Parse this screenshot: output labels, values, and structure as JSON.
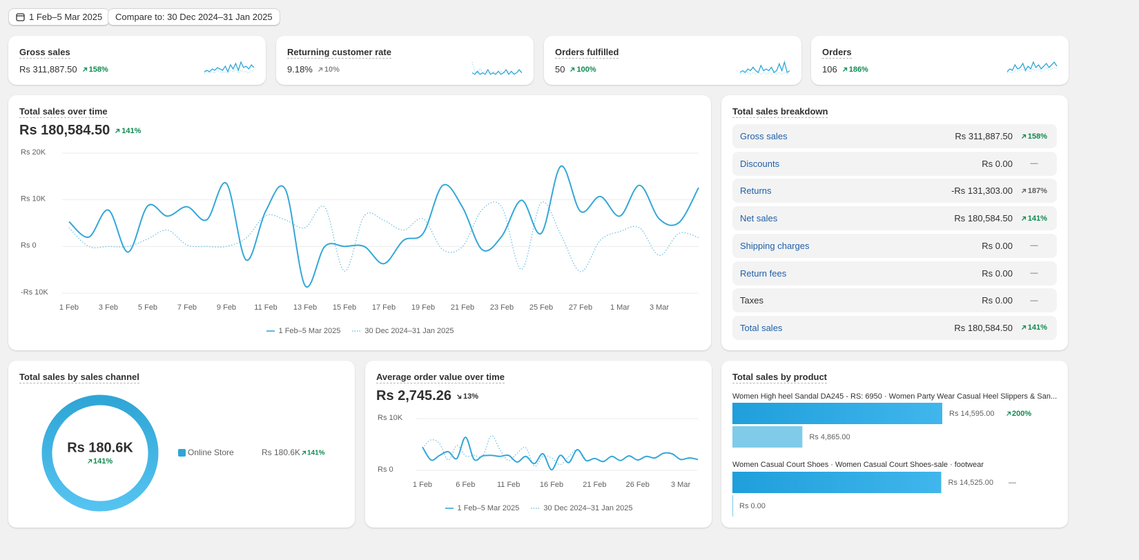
{
  "header": {
    "date_range": "1 Feb–5 Mar 2025",
    "compare": "Compare to: 30 Dec 2024–31 Jan 2025"
  },
  "kpis": [
    {
      "title": "Gross sales",
      "value": "Rs 311,887.50",
      "change": "158%",
      "trend": "up",
      "change_color": "#0c8a4e",
      "sparkline": {
        "color": "#2fa6d6",
        "current": [
          3,
          4,
          3,
          5,
          4,
          6,
          5,
          4,
          7,
          3,
          8,
          5,
          9,
          4,
          10,
          6,
          7,
          5,
          8,
          6
        ],
        "previous": [
          2,
          3,
          2,
          3,
          2,
          4,
          3,
          2,
          3,
          2,
          4,
          3,
          5,
          2,
          4,
          3,
          3,
          2,
          4,
          3
        ]
      }
    },
    {
      "title": "Returning customer rate",
      "value": "9.18%",
      "change": "10%",
      "trend": "up",
      "change_color": "#8a8a8a",
      "sparkline": {
        "color": "#2fa6d6",
        "current": [
          2,
          1,
          3,
          1,
          2,
          1,
          4,
          1,
          2,
          1,
          3,
          1,
          2,
          4,
          1,
          3,
          1,
          2,
          4,
          2
        ],
        "previous": [
          9,
          3,
          2,
          5,
          2,
          3,
          2,
          2,
          3,
          2,
          2,
          3,
          2,
          2,
          3,
          2,
          2,
          2,
          3,
          2
        ]
      }
    },
    {
      "title": "Orders fulfilled",
      "value": "50",
      "change": "100%",
      "trend": "up",
      "change_color": "#0c8a4e",
      "sparkline": {
        "color": "#2fa6d6",
        "current": [
          2,
          3,
          2,
          4,
          3,
          5,
          3,
          2,
          6,
          3,
          4,
          3,
          5,
          2,
          3,
          7,
          3,
          8,
          2,
          3
        ],
        "previous": [
          1,
          2,
          1,
          2,
          1,
          2,
          1,
          2,
          1,
          2,
          1,
          2,
          1,
          2,
          1,
          2,
          1,
          2,
          1,
          2
        ]
      }
    },
    {
      "title": "Orders",
      "value": "106",
      "change": "186%",
      "trend": "up",
      "change_color": "#0c8a4e",
      "sparkline": {
        "color": "#2fa6d6",
        "current": [
          3,
          5,
          4,
          8,
          5,
          6,
          9,
          4,
          7,
          5,
          10,
          6,
          8,
          5,
          7,
          9,
          6,
          8,
          10,
          7
        ],
        "previous": [
          2,
          3,
          2,
          4,
          3,
          4,
          5,
          3,
          4,
          3,
          5,
          4,
          5,
          3,
          4,
          6,
          4,
          5,
          6,
          5
        ]
      }
    }
  ],
  "total_sales_over_time": {
    "title": "Total sales over time",
    "total": "Rs 180,584.50",
    "change": "141%",
    "trend": "up",
    "change_color": "#0c8a4e",
    "chart_data": {
      "type": "line",
      "categories": [
        "1 Feb",
        null,
        "3 Feb",
        null,
        "5 Feb",
        null,
        "7 Feb",
        null,
        "9 Feb",
        null,
        "11 Feb",
        null,
        "13 Feb",
        null,
        "15 Feb",
        null,
        "17 Feb",
        null,
        "19 Feb",
        null,
        "21 Feb",
        null,
        "23 Feb",
        null,
        "25 Feb",
        null,
        "27 Feb",
        null,
        "1 Mar",
        null,
        "3 Mar",
        null,
        null
      ],
      "series": [
        {
          "name": "1 Feb–5 Mar 2025",
          "color": "#33a7d8",
          "style": "solid",
          "values": [
            5300,
            2000,
            7800,
            -1200,
            8700,
            6500,
            8500,
            5700,
            13500,
            -2900,
            7600,
            12200,
            -8400,
            0,
            0,
            0,
            -3700,
            1300,
            2800,
            13100,
            8400,
            -700,
            2200,
            9900,
            2800,
            17200,
            7500,
            10700,
            6500,
            13100,
            5900,
            5100,
            12600
          ]
        },
        {
          "name": "30 Dec 2024–31 Jan 2025",
          "color": "#6dc0e2",
          "style": "dotted",
          "values": [
            4000,
            0,
            0,
            0,
            1600,
            3500,
            300,
            0,
            0,
            1800,
            6600,
            5700,
            4000,
            8400,
            -5300,
            6500,
            5600,
            3500,
            5900,
            -700,
            0,
            7900,
            8400,
            -4900,
            9400,
            2500,
            -5400,
            1300,
            3200,
            4000,
            -1900,
            2800,
            1900
          ]
        }
      ],
      "ylim": [
        -10000,
        20000
      ],
      "yticks": [
        {
          "value": -10000,
          "label": "-Rs 10K"
        },
        {
          "value": 0,
          "label": "Rs 0"
        },
        {
          "value": 10000,
          "label": "Rs 10K"
        },
        {
          "value": 20000,
          "label": "Rs 20K"
        }
      ],
      "grid": true
    }
  },
  "breakdown": {
    "title": "Total sales breakdown",
    "rows": [
      {
        "label": "Gross sales",
        "value": "Rs 311,887.50",
        "change": "158%",
        "trend": "up",
        "change_color": "#0c8a4e",
        "link": true
      },
      {
        "label": "Discounts",
        "value": "Rs 0.00",
        "change": "—",
        "change_color": "#616161",
        "link": true
      },
      {
        "label": "Returns",
        "value": "-Rs 131,303.00",
        "change": "187%",
        "trend": "up",
        "change_color": "#616161",
        "link": true
      },
      {
        "label": "Net sales",
        "value": "Rs 180,584.50",
        "change": "141%",
        "trend": "up",
        "change_color": "#0c8a4e",
        "link": true
      },
      {
        "label": "Shipping charges",
        "value": "Rs 0.00",
        "change": "—",
        "change_color": "#616161",
        "link": true
      },
      {
        "label": "Return fees",
        "value": "Rs 0.00",
        "change": "—",
        "change_color": "#616161",
        "link": true
      },
      {
        "label": "Taxes",
        "value": "Rs 0.00",
        "change": "—",
        "change_color": "#616161",
        "link": false
      },
      {
        "label": "Total sales",
        "value": "Rs 180,584.50",
        "change": "141%",
        "trend": "up",
        "change_color": "#0c8a4e",
        "link": true
      }
    ]
  },
  "sales_channel": {
    "title": "Total sales by sales channel",
    "chart_data": {
      "type": "donut",
      "center_label": "Rs 180.6K",
      "center_change": "141%",
      "categories": [
        "Online Store"
      ],
      "values": [
        180584.5
      ],
      "value_labels": [
        "Rs 180.6K"
      ],
      "changes": [
        "141%"
      ],
      "change_color": "#0c8a4e",
      "color": "#2fa6d6"
    }
  },
  "average_order_value": {
    "title": "Average order value over time",
    "total": "Rs 2,745.26",
    "change": "13%",
    "trend": "down",
    "change_color": "#303030",
    "chart_data": {
      "type": "line",
      "categories": [
        "1 Feb",
        null,
        null,
        null,
        null,
        "6 Feb",
        null,
        null,
        null,
        null,
        "11 Feb",
        null,
        null,
        null,
        null,
        "16 Feb",
        null,
        null,
        null,
        null,
        "21 Feb",
        null,
        null,
        null,
        null,
        "26 Feb",
        null,
        null,
        null,
        null,
        "3 Mar",
        null,
        null
      ],
      "series": [
        {
          "name": "1 Feb–5 Mar 2025",
          "color": "#33a7d8",
          "style": "solid",
          "values": [
            4500,
            2000,
            2900,
            3600,
            2300,
            6400,
            2100,
            2800,
            2900,
            2700,
            2900,
            1600,
            2700,
            1300,
            3200,
            100,
            2900,
            1500,
            4000,
            1900,
            2300,
            1700,
            2700,
            1900,
            2800,
            2000,
            2700,
            2400,
            3300,
            3200,
            2100,
            2400,
            2100
          ]
        },
        {
          "name": "30 Dec 2024–31 Jan 2025",
          "color": "#6dc0e2",
          "style": "dotted",
          "values": [
            4300,
            5900,
            5100,
            2000,
            4800,
            2800,
            2900,
            2800,
            6700,
            4000,
            1900,
            3300,
            4400,
            800,
            2700,
            2400,
            1100,
            2700,
            4000,
            2000,
            null,
            null,
            null,
            null,
            null,
            null,
            null,
            null,
            null,
            null,
            null,
            null,
            null
          ]
        }
      ],
      "ylim": [
        0,
        10000
      ],
      "yticks": [
        {
          "value": 0,
          "label": "Rs 0"
        },
        {
          "value": 10000,
          "label": "Rs 10K"
        }
      ],
      "grid": true
    }
  },
  "products": {
    "title": "Total sales by product",
    "chart_data": {
      "type": "bar",
      "orientation": "horizontal",
      "categories": [
        "Women High heel Sandal DA245 - RS: 6950 · Women Party Wear Casual Heel Slippers & San...",
        "Women Casual Court Shoes · Women Casual Court Shoes-sale · footwear"
      ],
      "series": [
        {
          "color": "#1f9fdb",
          "values": [
            14595,
            14525
          ],
          "value_labels": [
            "Rs 14,595.00",
            "Rs 14,525.00"
          ]
        },
        {
          "color": "#80cbea",
          "values": [
            4865,
            0
          ],
          "value_labels": [
            "Rs 4,865.00",
            "Rs 0.00"
          ]
        }
      ],
      "changes": [
        "200%",
        "—"
      ],
      "change_trends": [
        "up",
        null
      ],
      "change_colors": [
        "#0c8a4e",
        "#616161"
      ]
    }
  }
}
